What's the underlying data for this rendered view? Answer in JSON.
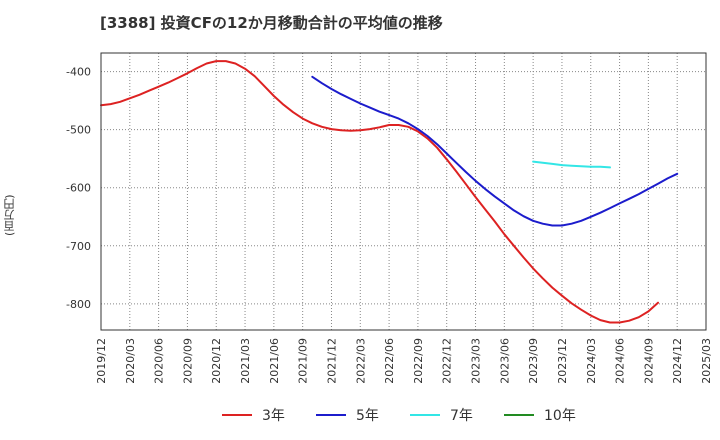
{
  "title": "[3388]  投資CFの12か月移動合計の平均値の推移",
  "chart_data": {
    "type": "line",
    "title": "[3388]  投資CFの12か月移動合計の平均値の推移",
    "ylabel": "(百万円)",
    "xlabel": "",
    "ylim": [
      -845,
      -368
    ],
    "y_ticks": [
      -400,
      -500,
      -600,
      -700,
      -800
    ],
    "y_tick_labels": [
      "-400",
      "-500",
      "-600",
      "-700",
      "-800"
    ],
    "x_ticks": [
      "2019/12",
      "2020/03",
      "2020/06",
      "2020/09",
      "2020/12",
      "2021/03",
      "2021/06",
      "2021/09",
      "2021/12",
      "2022/03",
      "2022/06",
      "2022/09",
      "2022/12",
      "2023/03",
      "2023/06",
      "2023/09",
      "2023/12",
      "2024/03",
      "2024/06",
      "2024/09",
      "2024/12",
      "2025/03"
    ],
    "grid": true,
    "legend_position": "bottom",
    "series": [
      {
        "name": "3年",
        "color": "#dd2222",
        "points": [
          [
            "2019/12",
            -458
          ],
          [
            "2020/01",
            -456
          ],
          [
            "2020/02",
            -452
          ],
          [
            "2020/03",
            -446
          ],
          [
            "2020/04",
            -440
          ],
          [
            "2020/05",
            -433
          ],
          [
            "2020/06",
            -426
          ],
          [
            "2020/07",
            -419
          ],
          [
            "2020/08",
            -411
          ],
          [
            "2020/09",
            -403
          ],
          [
            "2020/10",
            -394
          ],
          [
            "2020/11",
            -386
          ],
          [
            "2020/12",
            -382
          ],
          [
            "2021/01",
            -382
          ],
          [
            "2021/02",
            -386
          ],
          [
            "2021/03",
            -395
          ],
          [
            "2021/04",
            -408
          ],
          [
            "2021/05",
            -425
          ],
          [
            "2021/06",
            -442
          ],
          [
            "2021/07",
            -457
          ],
          [
            "2021/08",
            -470
          ],
          [
            "2021/09",
            -481
          ],
          [
            "2021/10",
            -489
          ],
          [
            "2021/11",
            -495
          ],
          [
            "2021/12",
            -499
          ],
          [
            "2022/01",
            -501
          ],
          [
            "2022/02",
            -502
          ],
          [
            "2022/03",
            -501
          ],
          [
            "2022/04",
            -499
          ],
          [
            "2022/05",
            -496
          ],
          [
            "2022/06",
            -492
          ],
          [
            "2022/07",
            -492
          ],
          [
            "2022/08",
            -495
          ],
          [
            "2022/09",
            -503
          ],
          [
            "2022/10",
            -515
          ],
          [
            "2022/11",
            -531
          ],
          [
            "2022/12",
            -551
          ],
          [
            "2023/01",
            -572
          ],
          [
            "2023/02",
            -594
          ],
          [
            "2023/03",
            -616
          ],
          [
            "2023/04",
            -637
          ],
          [
            "2023/05",
            -658
          ],
          [
            "2023/06",
            -680
          ],
          [
            "2023/07",
            -700
          ],
          [
            "2023/08",
            -720
          ],
          [
            "2023/09",
            -739
          ],
          [
            "2023/10",
            -756
          ],
          [
            "2023/11",
            -772
          ],
          [
            "2023/12",
            -786
          ],
          [
            "2024/01",
            -799
          ],
          [
            "2024/02",
            -810
          ],
          [
            "2024/03",
            -820
          ],
          [
            "2024/04",
            -828
          ],
          [
            "2024/05",
            -832
          ],
          [
            "2024/06",
            -832
          ],
          [
            "2024/07",
            -829
          ],
          [
            "2024/08",
            -823
          ],
          [
            "2024/09",
            -813
          ],
          [
            "2024/10",
            -798
          ]
        ]
      },
      {
        "name": "5年",
        "color": "#1c1ccc",
        "points": [
          [
            "2021/10",
            -409
          ],
          [
            "2021/11",
            -420
          ],
          [
            "2021/12",
            -430
          ],
          [
            "2022/01",
            -439
          ],
          [
            "2022/02",
            -447
          ],
          [
            "2022/03",
            -455
          ],
          [
            "2022/04",
            -462
          ],
          [
            "2022/05",
            -469
          ],
          [
            "2022/06",
            -475
          ],
          [
            "2022/07",
            -481
          ],
          [
            "2022/08",
            -489
          ],
          [
            "2022/09",
            -499
          ],
          [
            "2022/10",
            -511
          ],
          [
            "2022/11",
            -525
          ],
          [
            "2022/12",
            -541
          ],
          [
            "2023/01",
            -557
          ],
          [
            "2023/02",
            -573
          ],
          [
            "2023/03",
            -588
          ],
          [
            "2023/04",
            -602
          ],
          [
            "2023/05",
            -615
          ],
          [
            "2023/06",
            -627
          ],
          [
            "2023/07",
            -639
          ],
          [
            "2023/08",
            -649
          ],
          [
            "2023/09",
            -657
          ],
          [
            "2023/10",
            -662
          ],
          [
            "2023/11",
            -665
          ],
          [
            "2023/12",
            -665
          ],
          [
            "2024/01",
            -662
          ],
          [
            "2024/02",
            -657
          ],
          [
            "2024/03",
            -650
          ],
          [
            "2024/04",
            -643
          ],
          [
            "2024/05",
            -635
          ],
          [
            "2024/06",
            -627
          ],
          [
            "2024/07",
            -619
          ],
          [
            "2024/08",
            -611
          ],
          [
            "2024/09",
            -602
          ],
          [
            "2024/10",
            -593
          ],
          [
            "2024/11",
            -584
          ],
          [
            "2024/12",
            -576
          ]
        ]
      },
      {
        "name": "7年",
        "color": "#33e6e6",
        "points": [
          [
            "2023/09",
            -555
          ],
          [
            "2023/10",
            -557
          ],
          [
            "2023/11",
            -559
          ],
          [
            "2023/12",
            -561
          ],
          [
            "2024/01",
            -562
          ],
          [
            "2024/02",
            -563
          ],
          [
            "2024/03",
            -564
          ],
          [
            "2024/04",
            -564
          ],
          [
            "2024/05",
            -565
          ]
        ]
      },
      {
        "name": "10年",
        "color": "#228b22",
        "points": []
      }
    ]
  }
}
